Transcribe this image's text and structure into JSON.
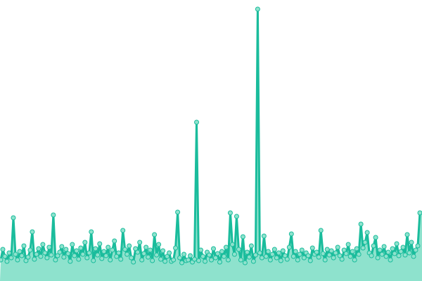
{
  "chart_data": {
    "type": "area",
    "title": "",
    "xlabel": "",
    "ylabel": "",
    "axes_visible": false,
    "grid": false,
    "legend": "none",
    "markers": true,
    "ylim": [
      0,
      400
    ],
    "colors": {
      "line": "#1abc9c",
      "fill": "#8ee2cd",
      "marker_fill": "#8ee2cd",
      "marker_stroke": "#1abc9c"
    },
    "series": [
      {
        "values": [
          30,
          45,
          35,
          28,
          40,
          33,
          90,
          38,
          30,
          42,
          36,
          50,
          29,
          34,
          44,
          70,
          31,
          38,
          46,
          35,
          52,
          40,
          33,
          48,
          37,
          94,
          30,
          36,
          41,
          49,
          34,
          45,
          39,
          28,
          52,
          36,
          43,
          31,
          47,
          38,
          55,
          33,
          40,
          70,
          29,
          46,
          37,
          53,
          32,
          42,
          36,
          48,
          30,
          44,
          57,
          35,
          40,
          31,
          72,
          45,
          38,
          50,
          33,
          27,
          46,
          41,
          55,
          30,
          39,
          48,
          34,
          44,
          29,
          66,
          37,
          52,
          31,
          43,
          28,
          35,
          40,
          28,
          30,
          47,
          98,
          33,
          26,
          38,
          29,
          30,
          36,
          27,
          31,
          226,
          29,
          44,
          35,
          28,
          41,
          37,
          30,
          46,
          33,
          39,
          27,
          42,
          35,
          48,
          30,
          97,
          52,
          38,
          92,
          45,
          30,
          63,
          26,
          41,
          34,
          50,
          28,
          37,
          387,
          40,
          33,
          64,
          35,
          42,
          30,
          38,
          45,
          33,
          40,
          29,
          43,
          36,
          31,
          48,
          67,
          35,
          42,
          30,
          38,
          44,
          33,
          40,
          36,
          29,
          47,
          38,
          41,
          34,
          72,
          39,
          30,
          45,
          37,
          43,
          33,
          40,
          48,
          36,
          31,
          44,
          39,
          52,
          35,
          42,
          30,
          46,
          38,
          81,
          47,
          55,
          69,
          40,
          36,
          50,
          62,
          33,
          44,
          38,
          49,
          35,
          41,
          30,
          46,
          39,
          53,
          36,
          42,
          48,
          37,
          66,
          40,
          55,
          35,
          44,
          50,
          97
        ]
      }
    ]
  }
}
